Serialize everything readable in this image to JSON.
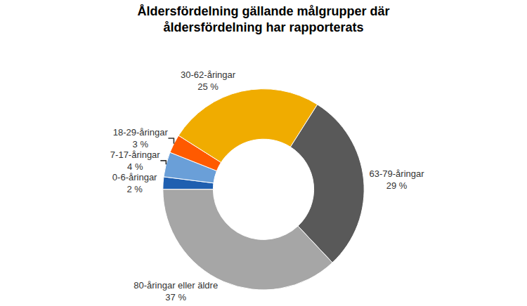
{
  "chart_data": {
    "type": "pie",
    "title": "Åldersfördelning gällande målgrupper där åldersfördelning har rapporterats",
    "categories": [
      "0-6-åringar",
      "7-17-åringar",
      "18-29-åringar",
      "30-62-åringar",
      "63-79-åringar",
      "80-åringar eller äldre"
    ],
    "values": [
      2,
      4,
      3,
      25,
      29,
      37
    ],
    "value_labels": [
      "2 %",
      "4 %",
      "3 %",
      "25 %",
      "29 %",
      "37 %"
    ],
    "colors": [
      "#1f5fb0",
      "#6a9fd8",
      "#ff5a00",
      "#f0ac00",
      "#595959",
      "#a6a6a6"
    ],
    "data_labels": true
  }
}
